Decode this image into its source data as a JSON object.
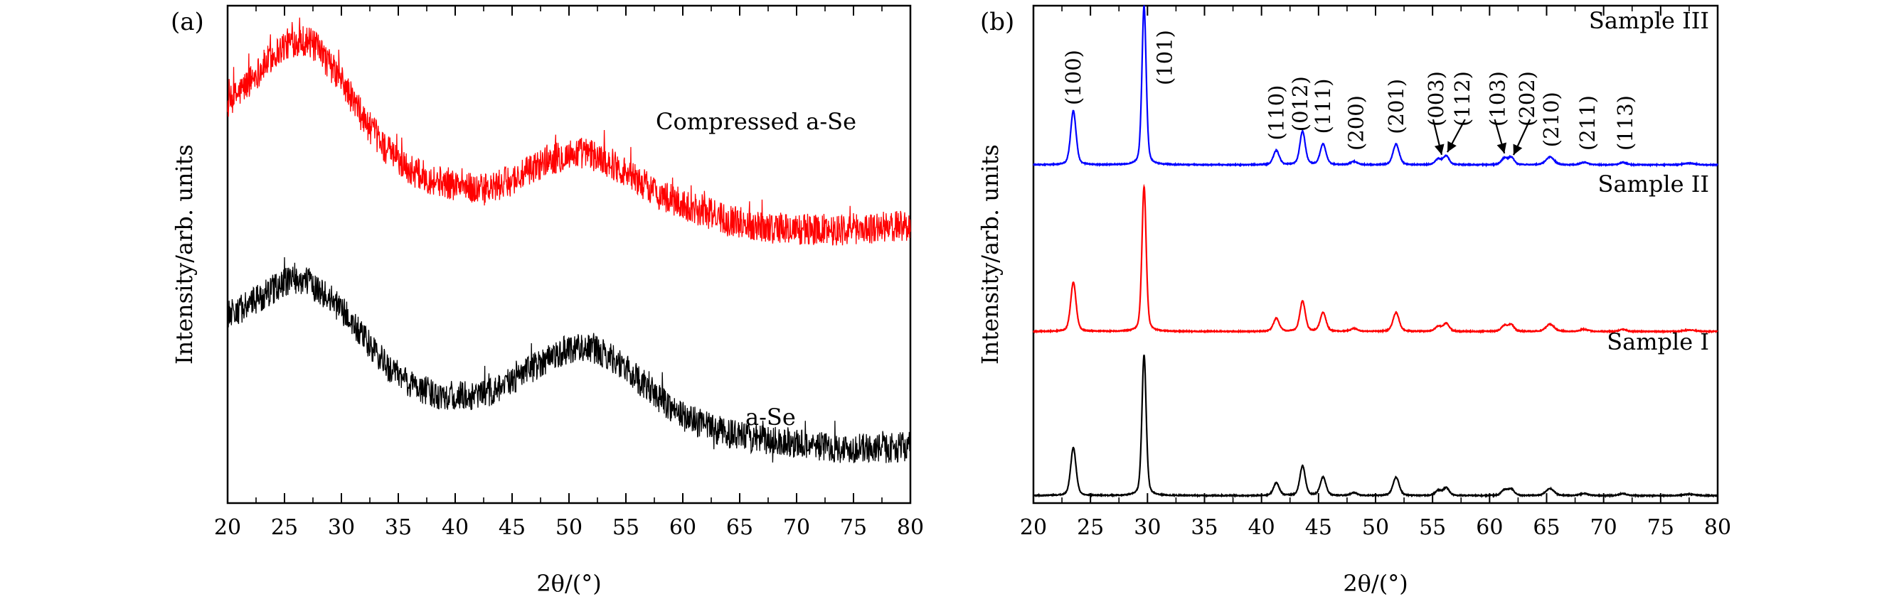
{
  "chart_data": [
    {
      "panel_label": "(a)",
      "type": "line",
      "xlabel": "2θ/(°)",
      "ylabel": "Intensity/arb. units",
      "xlim": [
        20,
        80
      ],
      "xticks": [
        20,
        25,
        30,
        35,
        40,
        45,
        50,
        55,
        60,
        65,
        70,
        75,
        80
      ],
      "ylim": [
        0,
        100
      ],
      "y_ticks_visible": false,
      "grid": false,
      "series": [
        {
          "name": "Compressed a-Se",
          "color": "#ff0000",
          "noise": 3.2,
          "x": [
            20,
            22,
            24,
            25,
            26,
            27,
            28,
            30,
            32,
            34,
            36,
            38,
            40,
            42,
            43,
            44,
            46,
            48,
            50,
            51,
            52,
            54,
            56,
            58,
            60,
            62,
            64,
            66,
            68,
            70,
            72,
            74,
            76,
            78,
            80
          ],
          "y": [
            80,
            85,
            90,
            92,
            93,
            93,
            91,
            85,
            77,
            71,
            67,
            65,
            64,
            63,
            63,
            64,
            66,
            69,
            70,
            70.5,
            70,
            68,
            65,
            62,
            60,
            58.5,
            57,
            56,
            55.3,
            55,
            55,
            55,
            55.2,
            55.5,
            56
          ]
        },
        {
          "name": "a-Se",
          "color": "#000000",
          "noise": 3.0,
          "x": [
            20,
            22,
            24,
            25,
            26,
            27,
            28,
            30,
            32,
            34,
            36,
            38,
            40,
            42,
            44,
            46,
            48,
            50,
            51,
            52,
            54,
            56,
            58,
            60,
            62,
            64,
            66,
            68,
            70,
            72,
            74,
            76,
            78,
            80
          ],
          "y": [
            38,
            40,
            43,
            44.5,
            45,
            44.5,
            43,
            39,
            33,
            27.5,
            24,
            22,
            21.5,
            21.5,
            23,
            26,
            29,
            31,
            31.5,
            31,
            29,
            25,
            21,
            17.5,
            15.5,
            14,
            13,
            12.5,
            12,
            11.5,
            11,
            11,
            11,
            11.5
          ]
        }
      ]
    },
    {
      "panel_label": "(b)",
      "type": "line",
      "xlabel": "2θ/(°)",
      "ylabel": "Intensity/arb. units",
      "xlim": [
        20,
        80
      ],
      "xticks": [
        20,
        25,
        30,
        35,
        40,
        45,
        50,
        55,
        60,
        65,
        70,
        75,
        80
      ],
      "ylim": [
        0,
        100
      ],
      "y_ticks_visible": false,
      "grid": false,
      "peaks": [
        {
          "x": 23.5,
          "h": 0.34,
          "w": 0.28
        },
        {
          "x": 29.7,
          "h": 1.0,
          "w": 0.22
        },
        {
          "x": 41.3,
          "h": 0.09,
          "w": 0.3
        },
        {
          "x": 43.6,
          "h": 0.21,
          "w": 0.28
        },
        {
          "x": 45.4,
          "h": 0.13,
          "w": 0.3
        },
        {
          "x": 48.1,
          "h": 0.02,
          "w": 0.35
        },
        {
          "x": 51.8,
          "h": 0.13,
          "w": 0.32
        },
        {
          "x": 55.5,
          "h": 0.035,
          "w": 0.32
        },
        {
          "x": 56.2,
          "h": 0.055,
          "w": 0.3
        },
        {
          "x": 61.3,
          "h": 0.04,
          "w": 0.32
        },
        {
          "x": 61.9,
          "h": 0.045,
          "w": 0.3
        },
        {
          "x": 65.3,
          "h": 0.05,
          "w": 0.42
        },
        {
          "x": 68.3,
          "h": 0.015,
          "w": 0.4
        },
        {
          "x": 71.7,
          "h": 0.015,
          "w": 0.35
        },
        {
          "x": 77.5,
          "h": 0.01,
          "w": 0.6
        }
      ],
      "series": [
        {
          "name": "Sample III",
          "color": "#0000ff",
          "baseline": 68,
          "scale": 32,
          "scale_ratio": 1.0
        },
        {
          "name": "Sample II",
          "color": "#ff0000",
          "baseline": 34.5,
          "scale": 31,
          "scale_ratio": 0.94
        },
        {
          "name": "Sample I",
          "color": "#000000",
          "baseline": 1.5,
          "scale": 30.5,
          "scale_ratio": 0.93
        }
      ],
      "annotations": [
        {
          "text": "(100)",
          "x": 23.5
        },
        {
          "text": "(101)",
          "x": 31.5
        },
        {
          "text": "(110)",
          "x": 41.3
        },
        {
          "text": "(012)",
          "x": 43.4
        },
        {
          "text": "(111)",
          "x": 45.4
        },
        {
          "text": "(200)",
          "x": 48.3
        },
        {
          "text": "(201)",
          "x": 51.8
        },
        {
          "text": "(003)",
          "x": 55.3,
          "arrow_to": 55.8
        },
        {
          "text": "(112)",
          "x": 57.6,
          "arrow_to": 56.3
        },
        {
          "text": "(103)",
          "x": 60.7,
          "arrow_to": 61.3
        },
        {
          "text": "(202)",
          "x": 63.3,
          "arrow_to": 62.1
        },
        {
          "text": "(210)",
          "x": 65.4
        },
        {
          "text": "(211)",
          "x": 68.6
        },
        {
          "text": "(113)",
          "x": 71.9
        }
      ]
    }
  ]
}
